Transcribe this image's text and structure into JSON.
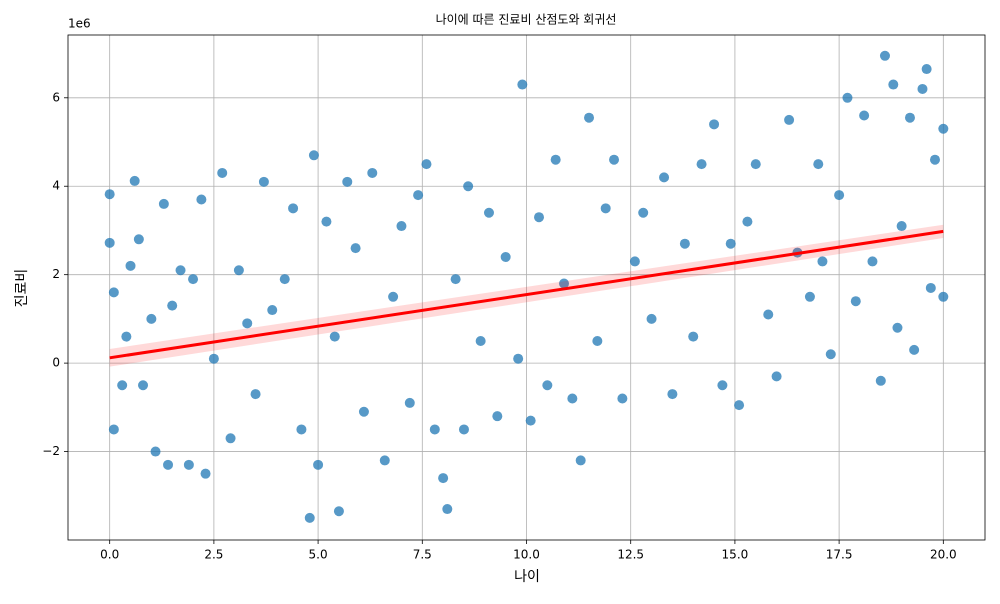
{
  "chart_data": {
    "type": "scatter",
    "title": "나이에 따른 진료비 산점도와 회귀선",
    "xlabel": "나이",
    "ylabel": "진료비",
    "y_offset_label": "1e6",
    "color": "#1f77b4",
    "grid": true,
    "xlim": [
      -1,
      21
    ],
    "ylim": [
      -4.0,
      7.42
    ],
    "xticks": [
      {
        "value": 0,
        "label": "0.0"
      },
      2.5,
      {
        "value": 5,
        "label": "5.0"
      },
      7.5,
      {
        "value": 10,
        "label": "10.0"
      },
      12.5,
      {
        "value": 15,
        "label": "15.0"
      },
      17.5,
      {
        "value": 20,
        "label": "20.0"
      }
    ],
    "yticks": [
      {
        "value": -2,
        "label": "−2"
      },
      0,
      2,
      4,
      6
    ],
    "x": [
      0.0,
      0.0,
      0.1,
      0.1,
      0.3,
      0.4,
      0.5,
      0.6,
      0.7,
      0.8,
      1.0,
      1.1,
      1.3,
      1.4,
      1.5,
      1.7,
      1.9,
      2.0,
      2.2,
      2.3,
      2.5,
      2.7,
      2.9,
      3.1,
      3.3,
      3.5,
      3.7,
      3.9,
      4.2,
      4.4,
      4.6,
      4.8,
      4.9,
      5.0,
      5.2,
      5.4,
      5.5,
      5.7,
      5.9,
      6.1,
      6.3,
      6.6,
      6.8,
      7.0,
      7.2,
      7.4,
      7.6,
      7.8,
      8.0,
      8.1,
      8.3,
      8.5,
      8.6,
      8.9,
      9.1,
      9.3,
      9.5,
      9.8,
      9.9,
      10.1,
      10.3,
      10.5,
      10.7,
      10.9,
      11.1,
      11.3,
      11.5,
      11.7,
      11.9,
      12.1,
      12.3,
      12.6,
      12.8,
      13.0,
      13.3,
      13.5,
      13.8,
      14.0,
      14.2,
      14.5,
      14.7,
      14.9,
      15.1,
      15.3,
      15.5,
      15.8,
      16.0,
      16.3,
      16.5,
      16.8,
      17.0,
      17.3,
      17.5,
      17.7,
      17.9,
      18.1,
      18.3,
      18.5,
      18.6,
      18.8,
      19.0,
      19.2,
      19.5,
      19.6,
      19.8,
      20.0,
      20.0,
      19.7,
      19.3,
      18.9,
      17.1
    ],
    "values": [
      3.82,
      2.72,
      1.6,
      -1.5,
      -0.5,
      0.6,
      2.2,
      4.12,
      2.8,
      -0.5,
      1.0,
      -2.0,
      3.6,
      -2.3,
      1.3,
      2.1,
      -2.3,
      1.9,
      3.7,
      -2.5,
      0.1,
      4.3,
      -1.7,
      2.1,
      0.9,
      -0.7,
      4.1,
      1.2,
      1.9,
      3.5,
      -1.5,
      -3.5,
      4.7,
      -2.3,
      3.2,
      0.6,
      -3.35,
      4.1,
      2.6,
      -1.1,
      4.3,
      -2.2,
      1.5,
      3.1,
      -0.9,
      3.8,
      4.5,
      -1.5,
      -2.6,
      -3.3,
      1.9,
      -1.5,
      4.0,
      0.5,
      3.4,
      -1.2,
      2.4,
      0.1,
      6.3,
      -1.3,
      3.3,
      -0.5,
      4.6,
      1.8,
      -0.8,
      -2.2,
      5.55,
      0.5,
      3.5,
      4.6,
      -0.8,
      2.3,
      3.4,
      1.0,
      4.2,
      -0.7,
      2.7,
      0.6,
      4.5,
      5.4,
      -0.5,
      2.7,
      -0.95,
      3.2,
      4.5,
      1.1,
      -0.3,
      5.5,
      2.5,
      1.5,
      4.5,
      0.2,
      3.8,
      6.0,
      1.4,
      5.6,
      2.3,
      -0.4,
      6.95,
      6.3,
      3.1,
      5.55,
      6.2,
      6.65,
      4.6,
      5.3,
      1.5,
      1.7,
      0.3,
      0.8,
      2.3
    ],
    "regression": {
      "color": "#ff0000",
      "x": [
        0,
        20
      ],
      "values": [
        0.12,
        2.98
      ],
      "ci_lower": [
        -0.08,
        2.83
      ],
      "ci_upper": [
        0.32,
        3.13
      ]
    }
  }
}
